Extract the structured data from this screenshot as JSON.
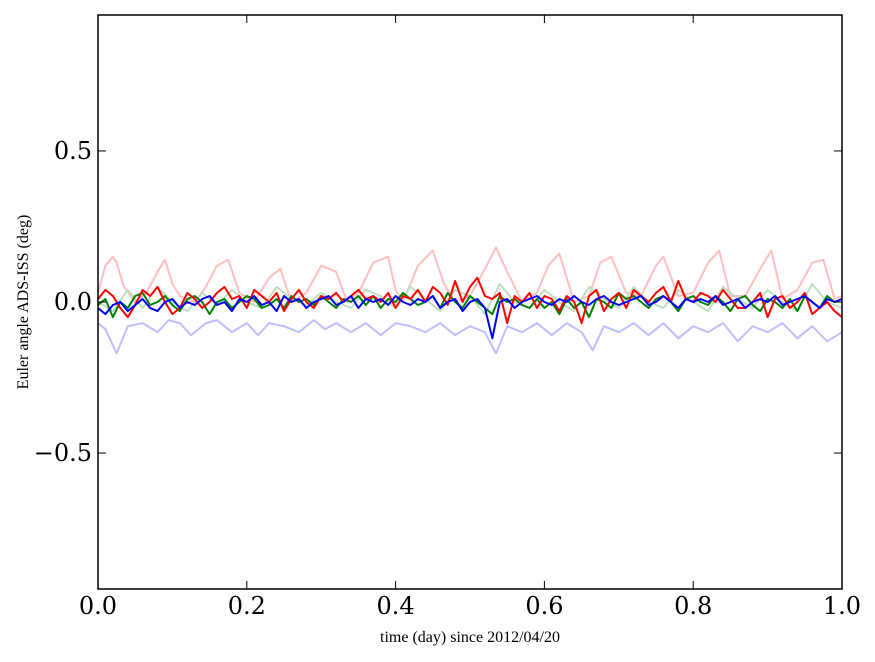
{
  "chart_data": {
    "type": "line",
    "xlabel": "time (day) since 2012/04/20",
    "ylabel": "Euler angle ADS-ISS (deg)",
    "xlim": [
      0.0,
      1.0
    ],
    "ylim": [
      -0.95,
      0.95
    ],
    "xticks": [
      0.0,
      0.2,
      0.4,
      0.6,
      0.8,
      1.0
    ],
    "xtick_labels": [
      "0.0",
      "0.2",
      "0.4",
      "0.6",
      "0.8",
      "1.0"
    ],
    "yticks": [
      0.5,
      0.0,
      -0.5
    ],
    "ytick_labels": [
      "0.5",
      "0.0",
      "−0.5"
    ],
    "grid": false,
    "legend": false,
    "series": [
      {
        "color": "#ffbfbf",
        "x": [
          0.0,
          0.01,
          0.02,
          0.025,
          0.035,
          0.05,
          0.065,
          0.08,
          0.09,
          0.1,
          0.11,
          0.13,
          0.145,
          0.16,
          0.175,
          0.19,
          0.21,
          0.23,
          0.245,
          0.26,
          0.28,
          0.3,
          0.32,
          0.335,
          0.35,
          0.37,
          0.39,
          0.4,
          0.41,
          0.43,
          0.45,
          0.465,
          0.48,
          0.5,
          0.52,
          0.535,
          0.55,
          0.57,
          0.59,
          0.605,
          0.62,
          0.64,
          0.66,
          0.675,
          0.69,
          0.71,
          0.73,
          0.75,
          0.76,
          0.78,
          0.8,
          0.82,
          0.835,
          0.85,
          0.87,
          0.89,
          0.905,
          0.92,
          0.94,
          0.96,
          0.975,
          0.99,
          1.0
        ],
        "y": [
          0.03,
          0.12,
          0.15,
          0.13,
          0.05,
          0.0,
          0.03,
          0.1,
          0.14,
          0.06,
          0.02,
          0.0,
          0.05,
          0.12,
          0.14,
          0.03,
          0.0,
          0.08,
          0.11,
          0.0,
          0.03,
          0.12,
          0.1,
          0.0,
          0.03,
          0.13,
          0.15,
          0.04,
          0.0,
          0.12,
          0.17,
          0.06,
          0.0,
          0.02,
          0.11,
          0.18,
          0.1,
          0.0,
          0.03,
          0.12,
          0.16,
          0.0,
          0.02,
          0.13,
          0.15,
          0.03,
          0.02,
          0.12,
          0.15,
          0.02,
          0.03,
          0.13,
          0.17,
          0.02,
          0.02,
          0.11,
          0.17,
          0.01,
          0.04,
          0.13,
          0.14,
          0.01,
          0.02
        ]
      },
      {
        "color": "#bfdfbf",
        "x": [
          0.0,
          0.02,
          0.04,
          0.06,
          0.08,
          0.1,
          0.12,
          0.14,
          0.16,
          0.18,
          0.2,
          0.22,
          0.24,
          0.26,
          0.28,
          0.3,
          0.32,
          0.34,
          0.36,
          0.38,
          0.4,
          0.42,
          0.44,
          0.46,
          0.48,
          0.5,
          0.52,
          0.54,
          0.56,
          0.58,
          0.6,
          0.62,
          0.64,
          0.66,
          0.68,
          0.7,
          0.72,
          0.74,
          0.76,
          0.78,
          0.8,
          0.82,
          0.84,
          0.86,
          0.88,
          0.9,
          0.92,
          0.94,
          0.96,
          0.98,
          1.0
        ],
        "y": [
          0.0,
          -0.03,
          0.04,
          -0.02,
          0.05,
          0.0,
          -0.03,
          0.03,
          -0.01,
          0.04,
          0.0,
          -0.02,
          0.05,
          0.01,
          -0.01,
          0.03,
          0.0,
          -0.02,
          0.04,
          0.02,
          -0.02,
          0.05,
          0.01,
          -0.03,
          0.04,
          0.02,
          -0.04,
          0.06,
          0.0,
          -0.02,
          0.04,
          0.0,
          -0.03,
          0.05,
          0.01,
          -0.02,
          0.05,
          0.0,
          -0.02,
          0.04,
          0.0,
          -0.03,
          0.05,
          0.01,
          -0.02,
          0.04,
          0.0,
          -0.03,
          0.06,
          0.0,
          -0.02
        ]
      },
      {
        "color": "#bfbfff",
        "x": [
          0.0,
          0.01,
          0.025,
          0.04,
          0.06,
          0.08,
          0.095,
          0.11,
          0.125,
          0.145,
          0.16,
          0.18,
          0.2,
          0.215,
          0.23,
          0.25,
          0.27,
          0.29,
          0.305,
          0.32,
          0.34,
          0.36,
          0.38,
          0.4,
          0.42,
          0.44,
          0.46,
          0.48,
          0.5,
          0.52,
          0.535,
          0.55,
          0.57,
          0.59,
          0.61,
          0.63,
          0.65,
          0.665,
          0.68,
          0.7,
          0.72,
          0.74,
          0.76,
          0.78,
          0.8,
          0.82,
          0.84,
          0.86,
          0.88,
          0.9,
          0.92,
          0.94,
          0.96,
          0.98,
          1.0
        ],
        "y": [
          -0.07,
          -0.09,
          -0.17,
          -0.08,
          -0.07,
          -0.1,
          -0.06,
          -0.07,
          -0.11,
          -0.07,
          -0.06,
          -0.1,
          -0.07,
          -0.11,
          -0.07,
          -0.08,
          -0.1,
          -0.06,
          -0.09,
          -0.07,
          -0.1,
          -0.07,
          -0.11,
          -0.07,
          -0.08,
          -0.1,
          -0.07,
          -0.11,
          -0.08,
          -0.1,
          -0.17,
          -0.08,
          -0.1,
          -0.07,
          -0.11,
          -0.07,
          -0.1,
          -0.16,
          -0.08,
          -0.1,
          -0.07,
          -0.11,
          -0.07,
          -0.12,
          -0.08,
          -0.1,
          -0.07,
          -0.13,
          -0.08,
          -0.1,
          -0.07,
          -0.12,
          -0.08,
          -0.13,
          -0.1
        ]
      },
      {
        "color": "#008000",
        "x": [
          0.0,
          0.01,
          0.02,
          0.03,
          0.04,
          0.05,
          0.06,
          0.07,
          0.08,
          0.09,
          0.1,
          0.11,
          0.12,
          0.13,
          0.14,
          0.15,
          0.16,
          0.17,
          0.18,
          0.19,
          0.2,
          0.21,
          0.22,
          0.23,
          0.24,
          0.25,
          0.26,
          0.27,
          0.28,
          0.29,
          0.3,
          0.31,
          0.32,
          0.33,
          0.34,
          0.35,
          0.36,
          0.37,
          0.38,
          0.39,
          0.4,
          0.41,
          0.42,
          0.43,
          0.44,
          0.45,
          0.46,
          0.47,
          0.48,
          0.49,
          0.5,
          0.51,
          0.52,
          0.53,
          0.54,
          0.55,
          0.56,
          0.57,
          0.58,
          0.59,
          0.6,
          0.61,
          0.62,
          0.63,
          0.64,
          0.65,
          0.66,
          0.67,
          0.68,
          0.69,
          0.7,
          0.71,
          0.72,
          0.73,
          0.74,
          0.75,
          0.76,
          0.77,
          0.78,
          0.79,
          0.8,
          0.81,
          0.82,
          0.83,
          0.84,
          0.85,
          0.86,
          0.87,
          0.88,
          0.89,
          0.9,
          0.91,
          0.92,
          0.93,
          0.94,
          0.95,
          0.96,
          0.97,
          0.98,
          0.99,
          1.0
        ],
        "y": [
          -0.01,
          0.01,
          -0.05,
          0.0,
          -0.02,
          0.02,
          0.03,
          -0.01,
          0.0,
          0.02,
          -0.01,
          -0.03,
          0.01,
          0.02,
          0.0,
          -0.04,
          0.0,
          0.01,
          -0.02,
          0.0,
          0.02,
          0.01,
          -0.02,
          -0.01,
          0.01,
          -0.02,
          0.02,
          0.0,
          0.01,
          -0.01,
          0.02,
          0.0,
          -0.02,
          0.01,
          0.0,
          0.02,
          -0.01,
          0.02,
          -0.02,
          0.01,
          0.0,
          0.03,
          0.01,
          -0.01,
          0.0,
          0.02,
          -0.02,
          0.03,
          0.0,
          -0.02,
          0.02,
          0.0,
          -0.02,
          -0.04,
          0.02,
          0.0,
          0.01,
          -0.01,
          -0.02,
          0.01,
          -0.02,
          0.0,
          -0.04,
          0.01,
          -0.02,
          0.0,
          -0.05,
          0.01,
          0.0,
          -0.02,
          0.03,
          0.01,
          0.02,
          0.0,
          -0.02,
          0.01,
          0.02,
          0.0,
          -0.03,
          0.01,
          0.02,
          0.0,
          -0.01,
          0.02,
          0.0,
          -0.03,
          0.01,
          0.02,
          -0.01,
          -0.03,
          0.01,
          0.0,
          -0.02,
          0.01,
          -0.03,
          0.02,
          0.0,
          -0.02,
          0.02,
          0.0,
          0.01
        ]
      },
      {
        "color": "#ff0000",
        "x": [
          0.0,
          0.01,
          0.02,
          0.03,
          0.04,
          0.05,
          0.06,
          0.07,
          0.08,
          0.09,
          0.1,
          0.11,
          0.12,
          0.13,
          0.14,
          0.15,
          0.16,
          0.17,
          0.18,
          0.19,
          0.2,
          0.21,
          0.22,
          0.23,
          0.24,
          0.25,
          0.26,
          0.27,
          0.28,
          0.29,
          0.3,
          0.31,
          0.32,
          0.33,
          0.34,
          0.35,
          0.36,
          0.37,
          0.38,
          0.39,
          0.4,
          0.41,
          0.42,
          0.43,
          0.44,
          0.45,
          0.46,
          0.47,
          0.48,
          0.49,
          0.5,
          0.51,
          0.52,
          0.53,
          0.54,
          0.55,
          0.56,
          0.57,
          0.58,
          0.59,
          0.6,
          0.61,
          0.62,
          0.63,
          0.64,
          0.65,
          0.66,
          0.67,
          0.68,
          0.69,
          0.7,
          0.71,
          0.72,
          0.73,
          0.74,
          0.75,
          0.76,
          0.77,
          0.78,
          0.79,
          0.8,
          0.81,
          0.82,
          0.83,
          0.84,
          0.85,
          0.86,
          0.87,
          0.88,
          0.89,
          0.9,
          0.91,
          0.92,
          0.93,
          0.94,
          0.95,
          0.96,
          0.97,
          0.98,
          0.99,
          1.0
        ],
        "y": [
          0.01,
          0.04,
          0.02,
          -0.02,
          -0.05,
          -0.01,
          0.04,
          0.02,
          0.05,
          0.0,
          -0.04,
          -0.02,
          0.03,
          0.01,
          -0.02,
          0.0,
          0.03,
          0.05,
          0.01,
          0.02,
          -0.02,
          0.04,
          0.02,
          0.0,
          0.03,
          -0.03,
          0.01,
          0.04,
          0.0,
          -0.02,
          0.02,
          0.01,
          0.03,
          0.0,
          0.02,
          0.04,
          0.01,
          0.02,
          0.0,
          0.03,
          -0.02,
          0.02,
          0.01,
          0.04,
          0.0,
          0.05,
          0.03,
          -0.01,
          0.07,
          0.0,
          0.05,
          0.08,
          0.02,
          0.01,
          0.03,
          -0.07,
          0.02,
          0.0,
          0.03,
          -0.02,
          0.02,
          0.01,
          -0.03,
          0.02,
          0.0,
          -0.07,
          0.02,
          0.04,
          -0.03,
          0.01,
          0.03,
          -0.02,
          0.04,
          0.02,
          0.0,
          0.03,
          0.05,
          0.0,
          0.07,
          0.01,
          0.0,
          0.03,
          0.02,
          0.0,
          0.04,
          0.01,
          -0.02,
          -0.02,
          0.0,
          0.03,
          -0.05,
          0.01,
          0.02,
          -0.02,
          0.0,
          0.03,
          -0.04,
          -0.02,
          0.0,
          -0.03,
          -0.05
        ]
      },
      {
        "color": "#0000ff",
        "x": [
          0.0,
          0.01,
          0.02,
          0.03,
          0.04,
          0.05,
          0.06,
          0.07,
          0.08,
          0.09,
          0.1,
          0.11,
          0.12,
          0.13,
          0.14,
          0.15,
          0.16,
          0.17,
          0.18,
          0.19,
          0.2,
          0.21,
          0.22,
          0.23,
          0.24,
          0.25,
          0.26,
          0.27,
          0.28,
          0.29,
          0.3,
          0.31,
          0.32,
          0.33,
          0.34,
          0.35,
          0.36,
          0.37,
          0.38,
          0.39,
          0.4,
          0.41,
          0.42,
          0.43,
          0.44,
          0.45,
          0.46,
          0.47,
          0.48,
          0.49,
          0.5,
          0.51,
          0.52,
          0.53,
          0.54,
          0.55,
          0.56,
          0.57,
          0.58,
          0.59,
          0.6,
          0.61,
          0.62,
          0.63,
          0.64,
          0.65,
          0.66,
          0.67,
          0.68,
          0.69,
          0.7,
          0.71,
          0.72,
          0.73,
          0.74,
          0.75,
          0.76,
          0.77,
          0.78,
          0.79,
          0.8,
          0.81,
          0.82,
          0.83,
          0.84,
          0.85,
          0.86,
          0.87,
          0.88,
          0.89,
          0.9,
          0.91,
          0.92,
          0.93,
          0.94,
          0.95,
          0.96,
          0.97,
          0.98,
          0.99,
          1.0
        ],
        "y": [
          -0.02,
          -0.04,
          -0.01,
          0.0,
          -0.03,
          -0.01,
          0.01,
          -0.02,
          -0.03,
          0.0,
          0.01,
          -0.02,
          0.0,
          -0.01,
          0.01,
          0.02,
          -0.01,
          0.0,
          -0.03,
          0.01,
          0.0,
          0.02,
          -0.01,
          0.0,
          -0.03,
          0.02,
          0.0,
          0.01,
          -0.02,
          0.0,
          0.01,
          0.02,
          -0.01,
          0.0,
          0.02,
          -0.02,
          0.01,
          0.0,
          0.01,
          -0.01,
          0.02,
          0.0,
          -0.01,
          0.01,
          0.0,
          0.02,
          -0.02,
          0.0,
          0.01,
          -0.03,
          0.0,
          0.01,
          -0.02,
          -0.12,
          0.0,
          0.01,
          -0.02,
          0.0,
          0.01,
          0.02,
          0.0,
          -0.01,
          0.01,
          0.0,
          0.02,
          0.0,
          -0.01,
          0.01,
          0.02,
          0.0,
          -0.01,
          0.0,
          0.01,
          0.02,
          -0.01,
          0.0,
          0.02,
          0.0,
          -0.02,
          0.01,
          0.0,
          0.01,
          0.0,
          0.02,
          -0.01,
          0.0,
          0.01,
          -0.02,
          0.0,
          0.01,
          0.0,
          0.02,
          -0.01,
          0.0,
          0.01,
          0.02,
          0.0,
          -0.02,
          0.01,
          0.0,
          0.01
        ]
      }
    ]
  }
}
